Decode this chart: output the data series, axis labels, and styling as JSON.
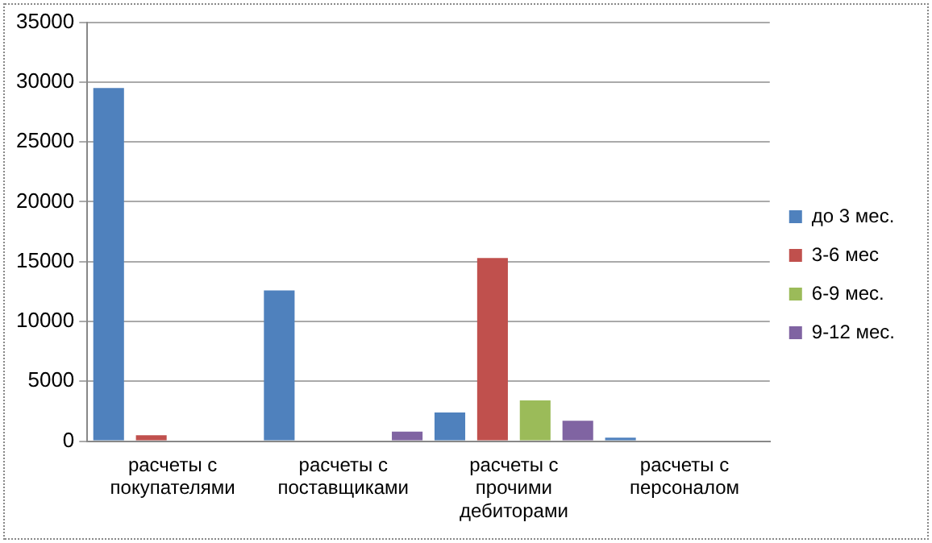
{
  "chart_data": {
    "type": "bar",
    "categories": [
      "расчеты с покупателями",
      "расчеты с поставщиками",
      "расчеты с прочими дебиторами",
      "расчеты с персоналом"
    ],
    "series": [
      {
        "name": "до 3 мес.",
        "color": "#4f81bd",
        "values": [
          29500,
          12600,
          2400,
          300
        ]
      },
      {
        "name": "3-6 мес",
        "color": "#c0504d",
        "values": [
          500,
          0,
          15300,
          0
        ]
      },
      {
        "name": "6-9 мес.",
        "color": "#9bbb59",
        "values": [
          0,
          0,
          3400,
          0
        ]
      },
      {
        "name": "9-12 мес.",
        "color": "#8064a2",
        "values": [
          0,
          800,
          1700,
          0
        ]
      }
    ],
    "ylim": [
      0,
      35000
    ],
    "yticks": [
      0,
      5000,
      10000,
      15000,
      20000,
      25000,
      30000,
      35000
    ],
    "grid": "y",
    "legend": "right"
  }
}
